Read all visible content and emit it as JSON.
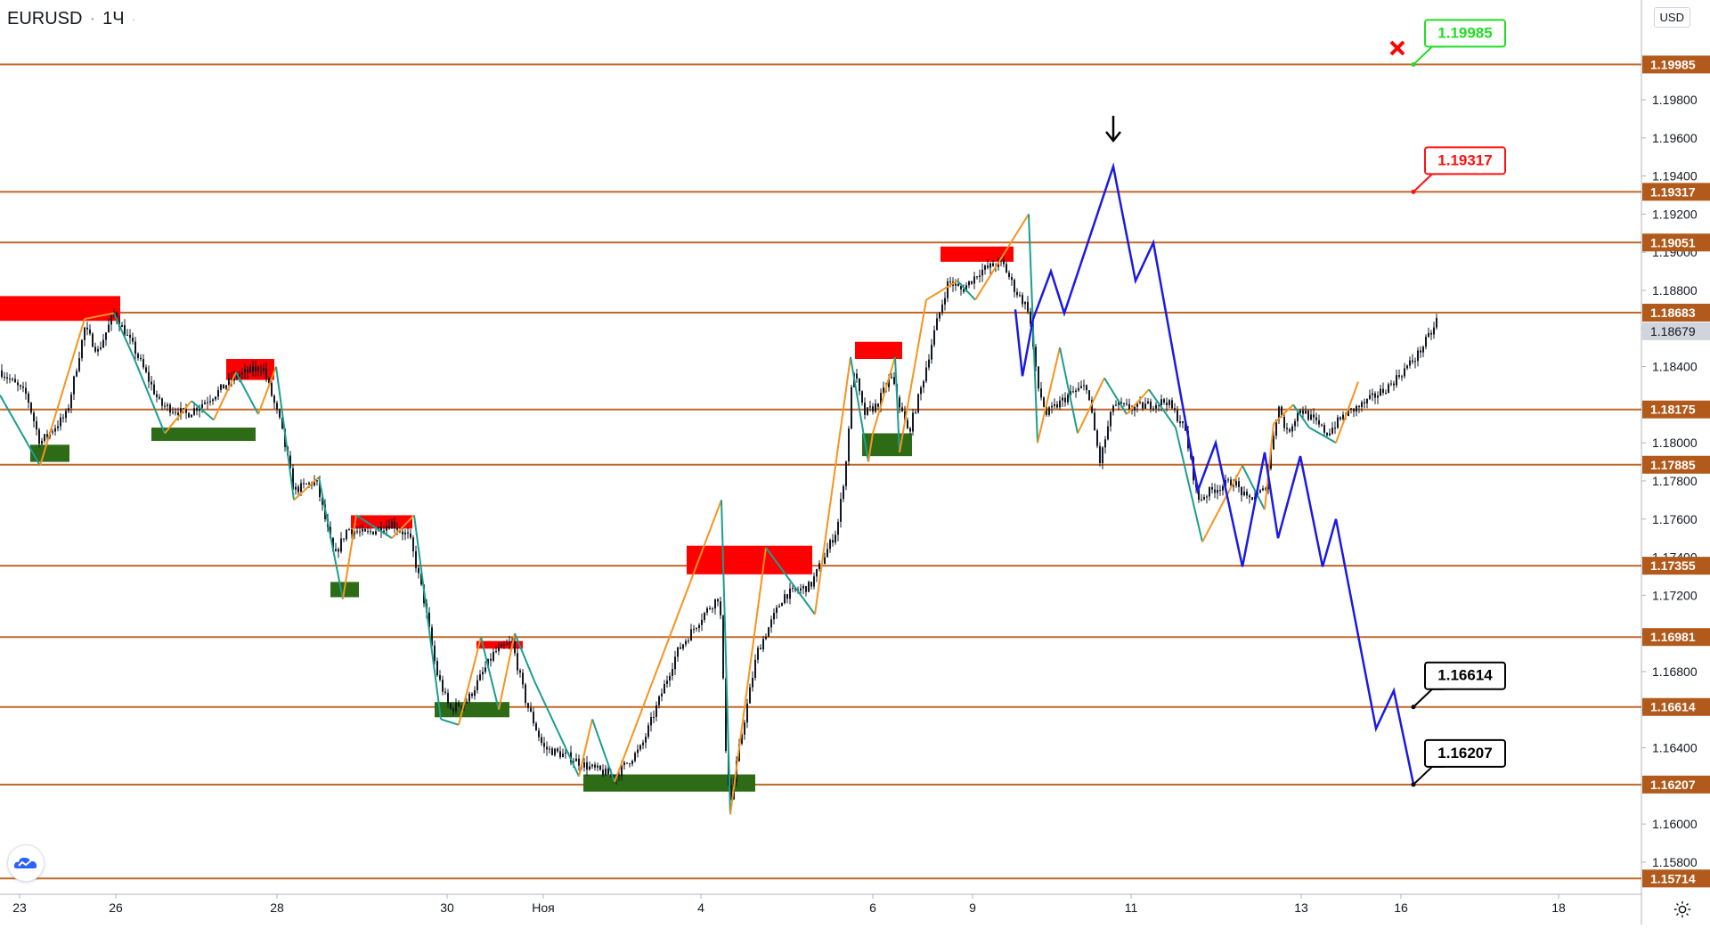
{
  "symbol": "EURUSD",
  "interval": "1Ч",
  "currency_button": "USD",
  "price_scale": {
    "range": [
      1.1565,
      1.2023
    ],
    "ticks": [
      "1.15800",
      "1.16000",
      "1.16200",
      "1.16400",
      "1.16600",
      "1.16800",
      "1.17000",
      "1.17200",
      "1.17400",
      "1.17600",
      "1.17800",
      "1.18000",
      "1.18200",
      "1.18400",
      "1.18600",
      "1.18800",
      "1.19000",
      "1.19200",
      "1.19400",
      "1.19600",
      "1.19800",
      "1.20000"
    ]
  },
  "time_axis": {
    "labels": [
      "23",
      "26",
      "28",
      "30",
      "Ноя",
      "4",
      "6",
      "9",
      "11",
      "13",
      "16",
      "18"
    ]
  },
  "levels": [
    {
      "price": 1.19985,
      "label": "1.19985"
    },
    {
      "price": 1.19317,
      "label": "1.19317"
    },
    {
      "price": 1.19051,
      "label": "1.19051"
    },
    {
      "price": 1.18683,
      "label": "1.18683"
    },
    {
      "price": 1.18175,
      "label": "1.18175"
    },
    {
      "price": 1.17885,
      "label": "1.17885"
    },
    {
      "price": 1.17355,
      "label": "1.17355"
    },
    {
      "price": 1.16981,
      "label": "1.16981"
    },
    {
      "price": 1.16614,
      "label": "1.16614"
    },
    {
      "price": 1.16207,
      "label": "1.16207"
    },
    {
      "price": 1.15714,
      "label": "1.15714"
    }
  ],
  "current_price": {
    "price": 1.18679,
    "label": "1.18679"
  },
  "callouts": [
    {
      "text": "1.19985",
      "price": 1.19985,
      "style": "green"
    },
    {
      "text": "1.19317",
      "price": 1.19317,
      "style": "red"
    },
    {
      "text": "1.16614",
      "price": 1.16614,
      "style": "black"
    },
    {
      "text": "1.16207",
      "price": 1.16207,
      "style": "black"
    }
  ],
  "colors": {
    "level_line": "#c0692a",
    "supply_zone": "#ff0000",
    "demand_zone": "#2e6b17",
    "candle": "#131722",
    "zigzag_up": "#f7931e",
    "zigzag_down": "#1a9e8f",
    "forecast": "#1a1ae6",
    "callout_green": "#22dd22",
    "callout_red": "#ff1111",
    "callout_black": "#000000",
    "axis_label_bg": "#b15a1c",
    "current_price_bg": "#d1d4dc"
  },
  "icons": {
    "logo": "tradingview-cloud-icon",
    "settings": "gear-icon",
    "cancel_marker": "x-mark-icon",
    "down_arrow": "arrow-down-icon"
  }
}
